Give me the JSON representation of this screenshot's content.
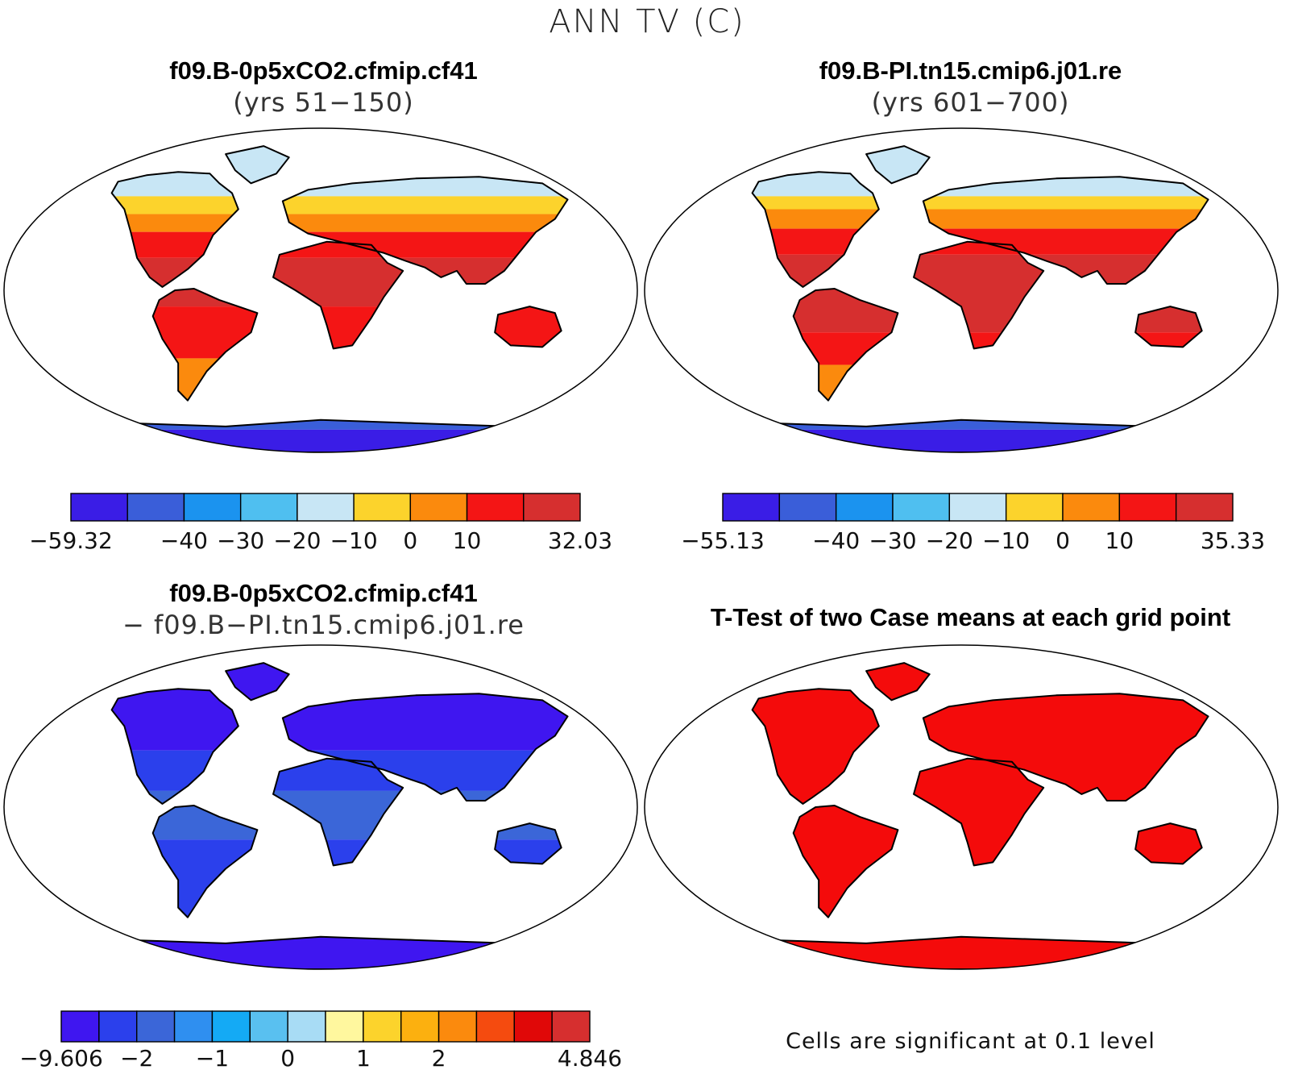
{
  "figure": {
    "title": "ANN TV (C)",
    "footnote": "Cells are significant at 0.1 level"
  },
  "chart_data": [
    {
      "type": "heatmap",
      "title": "f09.B-0p5xCO2.cfmip.cf41",
      "subtitle": "(yrs 51−150)",
      "colorbar": {
        "colors": [
          "#3a1de6",
          "#3a5ed9",
          "#1b93ef",
          "#4fbff0",
          "#c8e6f5",
          "#fcd32c",
          "#fb8a0d",
          "#f41515",
          "#d62f2f"
        ],
        "labels": [
          "−59.32",
          "−40",
          "−30",
          "−20",
          "−10",
          "0",
          "10",
          "32.03"
        ],
        "boundaries": [
          -59.32,
          -50,
          -40,
          -30,
          -20,
          -10,
          0,
          10,
          20,
          32.03
        ]
      }
    },
    {
      "type": "heatmap",
      "title": "f09.B-PI.tn15.cmip6.j01.re",
      "subtitle": "(yrs 601−700)",
      "colorbar": {
        "colors": [
          "#3a1de6",
          "#3a5ed9",
          "#1b93ef",
          "#4fbff0",
          "#c8e6f5",
          "#fcd32c",
          "#fb8a0d",
          "#f41515",
          "#d62f2f"
        ],
        "labels": [
          "−55.13",
          "−40",
          "−30",
          "−20",
          "−10",
          "0",
          "10",
          "35.33"
        ],
        "boundaries": [
          -55.13,
          -50,
          -40,
          -30,
          -20,
          -10,
          0,
          10,
          20,
          35.33
        ]
      }
    },
    {
      "type": "heatmap",
      "title": "f09.B-0p5xCO2.cfmip.cf41",
      "subtitle": "− f09.B−PI.tn15.cmip6.j01.re",
      "colorbar": {
        "colors": [
          "#3f16f0",
          "#2b40ec",
          "#3b66d8",
          "#2f8ff0",
          "#14aaf5",
          "#59c0f0",
          "#a8dcf5",
          "#fff79e",
          "#fcd32c",
          "#fcb00f",
          "#fb8a0d",
          "#f54b0f",
          "#e00808",
          "#d62f2f"
        ],
        "labels": [
          "−9.606",
          "−2",
          "−1",
          "0",
          "1",
          "2",
          "4.846"
        ],
        "boundaries": [
          -9.606,
          -3,
          -2,
          -1.5,
          -1,
          -0.5,
          0,
          0.5,
          1,
          1.5,
          2,
          2.5,
          3,
          4.846
        ]
      }
    },
    {
      "type": "heatmap",
      "title": "T-Test of two Case means at each grid point",
      "significance_color": "#f40b0b"
    }
  ]
}
